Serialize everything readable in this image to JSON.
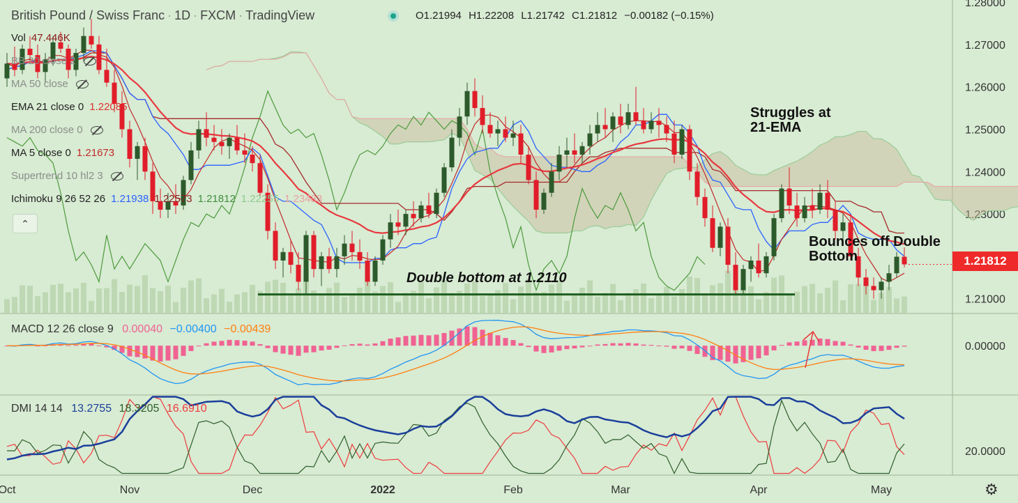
{
  "header": {
    "symbol": "British Pound / Swiss Franc",
    "interval": "1D",
    "broker": "FXCM",
    "platform": "TradingView",
    "ohlc": {
      "o": "O1.21994",
      "h": "H1.22208",
      "l": "L1.21742",
      "c": "C1.21812",
      "chg": "−0.00182 (−0.15%)"
    }
  },
  "indicators": [
    {
      "name": "Vol",
      "value": "47.446K",
      "value_color": "#8a1c1c",
      "muted": false,
      "hidden": false
    },
    {
      "name": "BB 20 close 2",
      "value": "",
      "muted": true,
      "hidden": true
    },
    {
      "name": "MA 50 close",
      "value": "",
      "muted": true,
      "hidden": true
    },
    {
      "name": "EMA 21 close 0",
      "value": "1.22085",
      "value_color": "#e03030",
      "muted": false,
      "hidden": false
    },
    {
      "name": "MA 200 close 0",
      "value": "",
      "muted": true,
      "hidden": true
    },
    {
      "name": "MA 5 close 0",
      "value": "1.21673",
      "value_color": "#c22a2a",
      "muted": false,
      "hidden": false
    },
    {
      "name": "Supertrend 10 hl2 3",
      "value": "",
      "muted": true,
      "hidden": true
    },
    {
      "name": "Ichimoku 9 26 52 26",
      "value": "",
      "muted": false,
      "hidden": false,
      "values": [
        {
          "t": "1.21938",
          "c": "#2962ff"
        },
        {
          "t": "1.22573",
          "c": "#8a1c1c"
        },
        {
          "t": "1.21812",
          "c": "#3f8f3f"
        },
        {
          "t": "1.22255",
          "c": "#8fc98f"
        },
        {
          "t": "1.23483",
          "c": "#e8a0a0"
        }
      ]
    }
  ],
  "macd": {
    "label": "MACD 12 26 close 9",
    "hist": "0.00040",
    "macd": "−0.00400",
    "signal": "−0.00439"
  },
  "dmi": {
    "label": "DMI 14 14",
    "adx": "13.2755",
    "plus_di": "18.3205",
    "minus_di": "16.6910"
  },
  "price_axis": [
    "1.28000",
    "1.27000",
    "1.26000",
    "1.25000",
    "1.24000",
    "1.23000",
    "1.22000",
    "1.21000"
  ],
  "macd_axis": [
    "0.00000"
  ],
  "dmi_axis": [
    "20.0000"
  ],
  "last_price": "1.21812",
  "time_axis": [
    "Oct",
    "Nov",
    "Dec",
    "2022",
    "Feb",
    "Mar",
    "Apr",
    "May"
  ],
  "annotations": {
    "struggles": [
      "Struggles at",
      "21-EMA"
    ],
    "bounces": [
      "Bounces off Double",
      "Bottom"
    ],
    "double_bottom": "Double bottom at 1.2110"
  },
  "colors": {
    "background": "#d8ebd3",
    "up": "#2d5a2b",
    "down": "#e11d2a",
    "ema21": "#e8383f",
    "tenkan": "#2962ff",
    "kijun": "#a52a2a",
    "chikou": "#4c9a3c",
    "support": "#1e5e1e",
    "macd_hist": "#f06292",
    "macd_line": "#2196f3",
    "signal_line": "#ff7f0e",
    "adx": "#1a3f9a",
    "plus_di": "#2e5e2a",
    "minus_di": "#ef3b3b"
  },
  "chart_data": {
    "type": "candlestick",
    "symbol": "GBPCHF",
    "price_ylim": [
      1.2065,
      1.2805
    ],
    "candles": [
      [
        1.262,
        1.268,
        1.26,
        1.2655
      ],
      [
        1.2655,
        1.2695,
        1.2625,
        1.264
      ],
      [
        1.264,
        1.27,
        1.263,
        1.269
      ],
      [
        1.269,
        1.272,
        1.266,
        1.2675
      ],
      [
        1.2675,
        1.27,
        1.262,
        1.2635
      ],
      [
        1.2635,
        1.268,
        1.261,
        1.2665
      ],
      [
        1.2665,
        1.272,
        1.265,
        1.2705
      ],
      [
        1.2705,
        1.273,
        1.268,
        1.269
      ],
      [
        1.269,
        1.27,
        1.262,
        1.264
      ],
      [
        1.264,
        1.269,
        1.2625,
        1.268
      ],
      [
        1.268,
        1.274,
        1.266,
        1.272
      ],
      [
        1.272,
        1.276,
        1.269,
        1.27
      ],
      [
        1.27,
        1.272,
        1.263,
        1.264
      ],
      [
        1.264,
        1.269,
        1.26,
        1.261
      ],
      [
        1.261,
        1.264,
        1.254,
        1.256
      ],
      [
        1.256,
        1.259,
        1.248,
        1.25
      ],
      [
        1.25,
        1.252,
        1.241,
        1.243
      ],
      [
        1.243,
        1.247,
        1.238,
        1.246
      ],
      [
        1.246,
        1.248,
        1.238,
        1.24
      ],
      [
        1.24,
        1.242,
        1.23,
        1.233
      ],
      [
        1.233,
        1.236,
        1.229,
        1.231
      ],
      [
        1.231,
        1.235,
        1.229,
        1.233
      ],
      [
        1.233,
        1.237,
        1.23,
        1.232
      ],
      [
        1.232,
        1.239,
        1.231,
        1.238
      ],
      [
        1.238,
        1.247,
        1.237,
        1.245
      ],
      [
        1.245,
        1.252,
        1.243,
        1.25
      ],
      [
        1.25,
        1.254,
        1.246,
        1.248
      ],
      [
        1.248,
        1.251,
        1.245,
        1.247
      ],
      [
        1.247,
        1.25,
        1.244,
        1.246
      ],
      [
        1.246,
        1.249,
        1.243,
        1.248
      ],
      [
        1.248,
        1.251,
        1.244,
        1.245
      ],
      [
        1.245,
        1.249,
        1.242,
        1.244
      ],
      [
        1.244,
        1.246,
        1.24,
        1.242
      ],
      [
        1.242,
        1.244,
        1.234,
        1.235
      ],
      [
        1.235,
        1.237,
        1.224,
        1.226
      ],
      [
        1.226,
        1.228,
        1.217,
        1.219
      ],
      [
        1.219,
        1.222,
        1.215,
        1.221
      ],
      [
        1.221,
        1.224,
        1.216,
        1.218
      ],
      [
        1.218,
        1.221,
        1.212,
        1.214
      ],
      [
        1.214,
        1.226,
        1.211,
        1.225
      ],
      [
        1.225,
        1.226,
        1.215,
        1.217
      ],
      [
        1.217,
        1.221,
        1.213,
        1.22
      ],
      [
        1.22,
        1.222,
        1.216,
        1.217
      ],
      [
        1.217,
        1.222,
        1.215,
        1.22
      ],
      [
        1.22,
        1.225,
        1.218,
        1.223
      ],
      [
        1.223,
        1.226,
        1.219,
        1.221
      ],
      [
        1.221,
        1.224,
        1.217,
        1.219
      ],
      [
        1.219,
        1.221,
        1.213,
        1.214
      ],
      [
        1.214,
        1.22,
        1.213,
        1.219
      ],
      [
        1.219,
        1.225,
        1.218,
        1.224
      ],
      [
        1.224,
        1.23,
        1.222,
        1.228
      ],
      [
        1.228,
        1.231,
        1.225,
        1.227
      ],
      [
        1.227,
        1.231,
        1.225,
        1.23
      ],
      [
        1.23,
        1.233,
        1.227,
        1.229
      ],
      [
        1.229,
        1.233,
        1.228,
        1.232
      ],
      [
        1.232,
        1.235,
        1.229,
        1.23
      ],
      [
        1.23,
        1.236,
        1.229,
        1.235
      ],
      [
        1.235,
        1.242,
        1.234,
        1.241
      ],
      [
        1.241,
        1.25,
        1.24,
        1.248
      ],
      [
        1.248,
        1.255,
        1.246,
        1.253
      ],
      [
        1.253,
        1.261,
        1.251,
        1.259
      ],
      [
        1.259,
        1.262,
        1.253,
        1.255
      ],
      [
        1.255,
        1.258,
        1.249,
        1.251
      ],
      [
        1.251,
        1.254,
        1.248,
        1.249
      ],
      [
        1.249,
        1.252,
        1.246,
        1.25
      ],
      [
        1.25,
        1.253,
        1.247,
        1.248
      ],
      [
        1.248,
        1.252,
        1.246,
        1.249
      ],
      [
        1.249,
        1.251,
        1.242,
        1.244
      ],
      [
        1.244,
        1.246,
        1.237,
        1.238
      ],
      [
        1.238,
        1.24,
        1.229,
        1.231
      ],
      [
        1.231,
        1.236,
        1.23,
        1.235
      ],
      [
        1.235,
        1.242,
        1.234,
        1.24
      ],
      [
        1.24,
        1.246,
        1.238,
        1.244
      ],
      [
        1.244,
        1.248,
        1.241,
        1.245
      ],
      [
        1.245,
        1.249,
        1.242,
        1.244
      ],
      [
        1.244,
        1.247,
        1.242,
        1.246
      ],
      [
        1.246,
        1.251,
        1.244,
        1.249
      ],
      [
        1.249,
        1.254,
        1.247,
        1.251
      ],
      [
        1.251,
        1.255,
        1.248,
        1.25
      ],
      [
        1.25,
        1.254,
        1.247,
        1.253
      ],
      [
        1.253,
        1.256,
        1.249,
        1.251
      ],
      [
        1.251,
        1.256,
        1.25,
        1.254
      ],
      [
        1.254,
        1.26,
        1.251,
        1.252
      ],
      [
        1.252,
        1.255,
        1.249,
        1.25
      ],
      [
        1.25,
        1.254,
        1.249,
        1.252
      ],
      [
        1.252,
        1.255,
        1.248,
        1.251
      ],
      [
        1.251,
        1.253,
        1.247,
        1.249
      ],
      [
        1.249,
        1.252,
        1.242,
        1.244
      ],
      [
        1.244,
        1.251,
        1.243,
        1.25
      ],
      [
        1.25,
        1.251,
        1.238,
        1.24
      ],
      [
        1.24,
        1.242,
        1.232,
        1.234
      ],
      [
        1.234,
        1.236,
        1.227,
        1.229
      ],
      [
        1.229,
        1.232,
        1.221,
        1.222
      ],
      [
        1.222,
        1.228,
        1.22,
        1.227
      ],
      [
        1.227,
        1.229,
        1.216,
        1.218
      ],
      [
        1.218,
        1.221,
        1.211,
        1.212
      ],
      [
        1.212,
        1.218,
        1.211,
        1.217
      ],
      [
        1.217,
        1.22,
        1.214,
        1.219
      ],
      [
        1.219,
        1.223,
        1.215,
        1.216
      ],
      [
        1.216,
        1.221,
        1.215,
        1.22
      ],
      [
        1.22,
        1.23,
        1.219,
        1.229
      ],
      [
        1.229,
        1.237,
        1.228,
        1.236
      ],
      [
        1.236,
        1.241,
        1.23,
        1.232
      ],
      [
        1.232,
        1.235,
        1.227,
        1.229
      ],
      [
        1.229,
        1.234,
        1.228,
        1.232
      ],
      [
        1.232,
        1.236,
        1.229,
        1.231
      ],
      [
        1.231,
        1.237,
        1.23,
        1.235
      ],
      [
        1.235,
        1.238,
        1.229,
        1.231
      ],
      [
        1.231,
        1.233,
        1.224,
        1.226
      ],
      [
        1.226,
        1.23,
        1.223,
        1.228
      ],
      [
        1.228,
        1.23,
        1.219,
        1.22
      ],
      [
        1.22,
        1.222,
        1.213,
        1.215
      ],
      [
        1.215,
        1.217,
        1.211,
        1.213
      ],
      [
        1.213,
        1.215,
        1.21,
        1.212
      ],
      [
        1.212,
        1.215,
        1.21,
        1.214
      ],
      [
        1.214,
        1.218,
        1.212,
        1.216
      ],
      [
        1.216,
        1.221,
        1.215,
        1.2199
      ],
      [
        1.2199,
        1.2221,
        1.2174,
        1.2181
      ]
    ],
    "support_level": 1.211,
    "macd_ylim": [
      -0.0115,
      0.0075
    ],
    "dmi_ylim": [
      6,
      52
    ]
  }
}
